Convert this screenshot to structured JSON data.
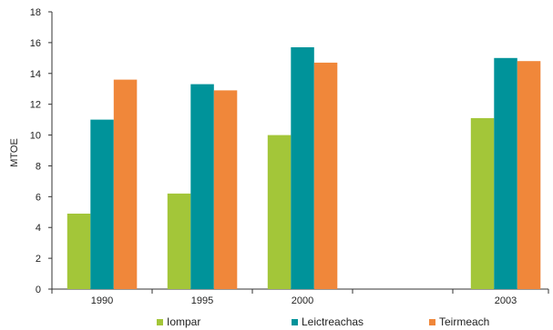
{
  "chart_data": {
    "type": "bar",
    "title": "",
    "xlabel": "",
    "ylabel": "MTOE",
    "ylim": [
      0,
      18
    ],
    "yticks": [
      0,
      2,
      4,
      6,
      8,
      10,
      12,
      14,
      16,
      18
    ],
    "categories": [
      "1990",
      "1995",
      "2000",
      "2003"
    ],
    "series": [
      {
        "name": "Iompar",
        "color": "#a3c639",
        "values": [
          4.9,
          6.2,
          10.0,
          11.1
        ]
      },
      {
        "name": "Leictreachas",
        "color": "#00939a",
        "values": [
          11.0,
          13.3,
          15.7,
          15.0
        ]
      },
      {
        "name": "Teirmeach",
        "color": "#f0873a",
        "values": [
          13.6,
          12.9,
          14.7,
          14.8
        ]
      }
    ],
    "grid": false,
    "legend_position": "bottom"
  }
}
